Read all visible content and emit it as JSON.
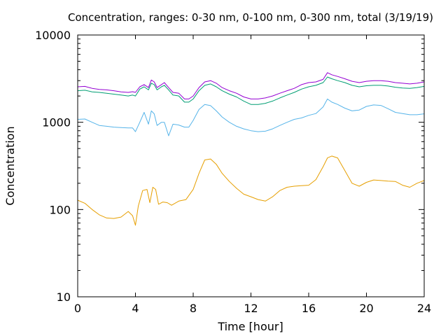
{
  "chart_data": {
    "type": "line",
    "title": "Concentration, ranges: 0-30 nm, 0-100 nm, 0-300 nm, total (3/19/19)",
    "xlabel": "Time [hour]",
    "ylabel": "Concentration",
    "xlim": [
      0,
      24
    ],
    "ylim": [
      10,
      10000
    ],
    "yscale": "log",
    "grid": false,
    "xticks": [
      0,
      4,
      8,
      12,
      16,
      20,
      24
    ],
    "xtick_labels": [
      "0",
      "4",
      "8",
      "12",
      "16",
      "20",
      "24"
    ],
    "yticks": [
      10,
      100,
      1000,
      10000
    ],
    "ytick_labels": [
      "10",
      "100",
      "1000",
      "10000"
    ],
    "series": [
      {
        "color": "#9400d3",
        "points": [
          [
            0,
            2550
          ],
          [
            0.5,
            2580
          ],
          [
            1,
            2450
          ],
          [
            1.5,
            2380
          ],
          [
            2,
            2350
          ],
          [
            2.5,
            2300
          ],
          [
            3,
            2230
          ],
          [
            3.5,
            2200
          ],
          [
            3.8,
            2240
          ],
          [
            4,
            2200
          ],
          [
            4.3,
            2550
          ],
          [
            4.6,
            2700
          ],
          [
            4.9,
            2500
          ],
          [
            5.1,
            3050
          ],
          [
            5.3,
            2900
          ],
          [
            5.5,
            2500
          ],
          [
            5.8,
            2700
          ],
          [
            6,
            2850
          ],
          [
            6.3,
            2500
          ],
          [
            6.6,
            2200
          ],
          [
            7,
            2150
          ],
          [
            7.4,
            1850
          ],
          [
            7.7,
            1850
          ],
          [
            8,
            2000
          ],
          [
            8.4,
            2500
          ],
          [
            8.8,
            2900
          ],
          [
            9.2,
            3000
          ],
          [
            9.6,
            2800
          ],
          [
            10,
            2500
          ],
          [
            10.5,
            2300
          ],
          [
            11,
            2150
          ],
          [
            11.5,
            1950
          ],
          [
            12,
            1850
          ],
          [
            12.5,
            1850
          ],
          [
            13,
            1900
          ],
          [
            13.5,
            2000
          ],
          [
            14,
            2150
          ],
          [
            14.5,
            2300
          ],
          [
            15,
            2450
          ],
          [
            15.5,
            2700
          ],
          [
            16,
            2850
          ],
          [
            16.5,
            2900
          ],
          [
            17,
            3100
          ],
          [
            17.3,
            3700
          ],
          [
            17.6,
            3500
          ],
          [
            18,
            3350
          ],
          [
            18.5,
            3150
          ],
          [
            19,
            2950
          ],
          [
            19.5,
            2850
          ],
          [
            20,
            2950
          ],
          [
            20.5,
            3000
          ],
          [
            21,
            3000
          ],
          [
            21.5,
            2950
          ],
          [
            22,
            2850
          ],
          [
            22.5,
            2800
          ],
          [
            23,
            2750
          ],
          [
            23.5,
            2800
          ],
          [
            24,
            2900
          ]
        ]
      },
      {
        "color": "#009e73",
        "points": [
          [
            0,
            2300
          ],
          [
            0.5,
            2330
          ],
          [
            1,
            2230
          ],
          [
            1.5,
            2200
          ],
          [
            2,
            2150
          ],
          [
            2.5,
            2100
          ],
          [
            3,
            2050
          ],
          [
            3.5,
            2000
          ],
          [
            3.8,
            2050
          ],
          [
            4,
            2000
          ],
          [
            4.3,
            2400
          ],
          [
            4.6,
            2550
          ],
          [
            4.9,
            2350
          ],
          [
            5.1,
            2800
          ],
          [
            5.3,
            2700
          ],
          [
            5.5,
            2350
          ],
          [
            5.8,
            2550
          ],
          [
            6,
            2650
          ],
          [
            6.3,
            2350
          ],
          [
            6.6,
            2050
          ],
          [
            7,
            2000
          ],
          [
            7.4,
            1700
          ],
          [
            7.7,
            1700
          ],
          [
            8,
            1850
          ],
          [
            8.4,
            2300
          ],
          [
            8.8,
            2650
          ],
          [
            9.2,
            2750
          ],
          [
            9.6,
            2550
          ],
          [
            10,
            2300
          ],
          [
            10.5,
            2100
          ],
          [
            11,
            1950
          ],
          [
            11.5,
            1750
          ],
          [
            12,
            1600
          ],
          [
            12.5,
            1600
          ],
          [
            13,
            1650
          ],
          [
            13.5,
            1750
          ],
          [
            14,
            1900
          ],
          [
            14.5,
            2050
          ],
          [
            15,
            2200
          ],
          [
            15.5,
            2400
          ],
          [
            16,
            2550
          ],
          [
            16.5,
            2650
          ],
          [
            17,
            2850
          ],
          [
            17.3,
            3300
          ],
          [
            17.6,
            3150
          ],
          [
            18,
            3000
          ],
          [
            18.5,
            2850
          ],
          [
            19,
            2650
          ],
          [
            19.5,
            2550
          ],
          [
            20,
            2620
          ],
          [
            20.5,
            2650
          ],
          [
            21,
            2650
          ],
          [
            21.5,
            2600
          ],
          [
            22,
            2520
          ],
          [
            22.5,
            2470
          ],
          [
            23,
            2450
          ],
          [
            23.5,
            2500
          ],
          [
            24,
            2580
          ]
        ]
      },
      {
        "color": "#56b4e9",
        "points": [
          [
            0,
            1080
          ],
          [
            0.5,
            1090
          ],
          [
            1,
            1000
          ],
          [
            1.5,
            920
          ],
          [
            2,
            900
          ],
          [
            2.5,
            880
          ],
          [
            3,
            870
          ],
          [
            3.5,
            860
          ],
          [
            3.8,
            860
          ],
          [
            4,
            780
          ],
          [
            4.3,
            1000
          ],
          [
            4.6,
            1300
          ],
          [
            4.9,
            950
          ],
          [
            5.1,
            1350
          ],
          [
            5.3,
            1250
          ],
          [
            5.5,
            920
          ],
          [
            5.8,
            1000
          ],
          [
            6,
            1000
          ],
          [
            6.3,
            700
          ],
          [
            6.6,
            950
          ],
          [
            7,
            930
          ],
          [
            7.4,
            880
          ],
          [
            7.7,
            880
          ],
          [
            8,
            1050
          ],
          [
            8.4,
            1400
          ],
          [
            8.8,
            1600
          ],
          [
            9.2,
            1550
          ],
          [
            9.6,
            1350
          ],
          [
            10,
            1150
          ],
          [
            10.5,
            1000
          ],
          [
            11,
            900
          ],
          [
            11.5,
            840
          ],
          [
            12,
            800
          ],
          [
            12.5,
            780
          ],
          [
            13,
            790
          ],
          [
            13.5,
            840
          ],
          [
            14,
            920
          ],
          [
            14.5,
            1000
          ],
          [
            15,
            1080
          ],
          [
            15.5,
            1120
          ],
          [
            16,
            1200
          ],
          [
            16.5,
            1260
          ],
          [
            17,
            1500
          ],
          [
            17.3,
            1850
          ],
          [
            17.6,
            1700
          ],
          [
            18,
            1600
          ],
          [
            18.5,
            1450
          ],
          [
            19,
            1350
          ],
          [
            19.5,
            1380
          ],
          [
            20,
            1520
          ],
          [
            20.5,
            1580
          ],
          [
            21,
            1560
          ],
          [
            21.5,
            1430
          ],
          [
            22,
            1300
          ],
          [
            22.5,
            1260
          ],
          [
            23,
            1220
          ],
          [
            23.5,
            1220
          ],
          [
            24,
            1250
          ]
        ]
      },
      {
        "color": "#e69f00",
        "points": [
          [
            0,
            128
          ],
          [
            0.5,
            118
          ],
          [
            1,
            100
          ],
          [
            1.5,
            87
          ],
          [
            2,
            80
          ],
          [
            2.5,
            79
          ],
          [
            3,
            82
          ],
          [
            3.5,
            95
          ],
          [
            3.8,
            85
          ],
          [
            4,
            66
          ],
          [
            4.2,
            110
          ],
          [
            4.5,
            165
          ],
          [
            4.8,
            170
          ],
          [
            5,
            120
          ],
          [
            5.2,
            180
          ],
          [
            5.4,
            170
          ],
          [
            5.6,
            115
          ],
          [
            5.9,
            122
          ],
          [
            6.2,
            120
          ],
          [
            6.5,
            112
          ],
          [
            7,
            125
          ],
          [
            7.5,
            130
          ],
          [
            8,
            170
          ],
          [
            8.4,
            260
          ],
          [
            8.8,
            370
          ],
          [
            9.2,
            380
          ],
          [
            9.6,
            330
          ],
          [
            10,
            260
          ],
          [
            10.5,
            210
          ],
          [
            11,
            175
          ],
          [
            11.5,
            150
          ],
          [
            12,
            140
          ],
          [
            12.5,
            130
          ],
          [
            13,
            125
          ],
          [
            13.5,
            140
          ],
          [
            14,
            165
          ],
          [
            14.5,
            180
          ],
          [
            15,
            185
          ],
          [
            15.5,
            188
          ],
          [
            16,
            190
          ],
          [
            16.5,
            220
          ],
          [
            17,
            310
          ],
          [
            17.3,
            390
          ],
          [
            17.6,
            410
          ],
          [
            18,
            390
          ],
          [
            18.5,
            280
          ],
          [
            19,
            200
          ],
          [
            19.5,
            185
          ],
          [
            20,
            205
          ],
          [
            20.5,
            218
          ],
          [
            21,
            215
          ],
          [
            21.5,
            212
          ],
          [
            22,
            210
          ],
          [
            22.5,
            190
          ],
          [
            23,
            180
          ],
          [
            23.5,
            200
          ],
          [
            24,
            215
          ]
        ]
      }
    ]
  }
}
